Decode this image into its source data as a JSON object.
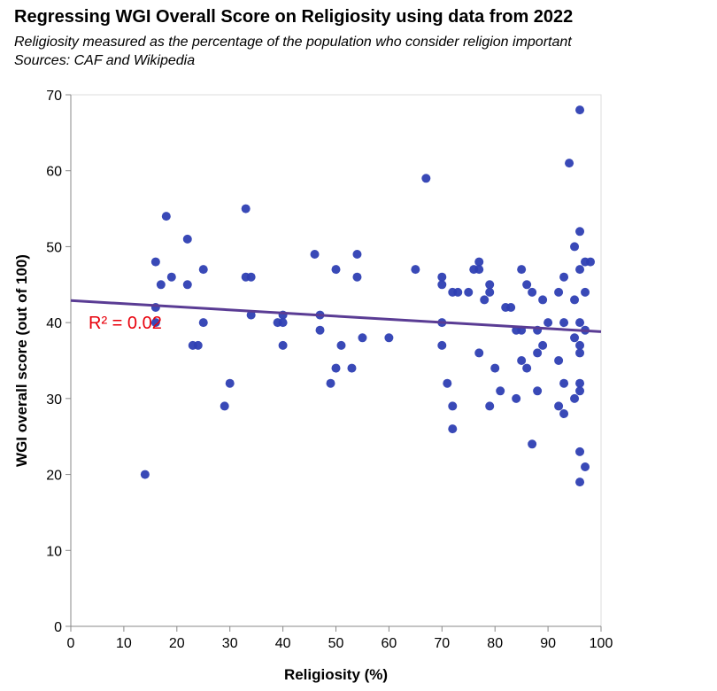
{
  "chart_data": {
    "type": "scatter",
    "title": "Regressing WGI Overall Score on Religiosity using data from 2022",
    "subtitle": "Religiosity measured as the percentage of the population who consider religion important",
    "source": "Sources: CAF and Wikipedia",
    "xlabel": "Religiosity (%)",
    "ylabel": "WGI overall score (out of 100)",
    "xlim": [
      0,
      100
    ],
    "ylim": [
      0,
      70
    ],
    "xticks": [
      0,
      10,
      20,
      30,
      40,
      50,
      60,
      70,
      80,
      90,
      100
    ],
    "yticks": [
      0,
      10,
      20,
      30,
      40,
      50,
      60,
      70
    ],
    "grid": false,
    "colors": {
      "points": "#2e3fb3",
      "trendline": "#5a3c94",
      "annotation": "#e8000b"
    },
    "annotation": "R² = 0.02",
    "trendline": {
      "x": [
        0,
        100
      ],
      "y": [
        42.9,
        38.8
      ]
    },
    "points": [
      [
        14,
        20
      ],
      [
        16,
        48
      ],
      [
        16,
        42
      ],
      [
        16,
        40
      ],
      [
        17,
        45
      ],
      [
        18,
        54
      ],
      [
        19,
        46
      ],
      [
        22,
        51
      ],
      [
        22,
        45
      ],
      [
        23,
        37
      ],
      [
        24,
        37
      ],
      [
        25,
        47
      ],
      [
        25,
        40
      ],
      [
        29,
        29
      ],
      [
        30,
        32
      ],
      [
        33,
        55
      ],
      [
        33,
        46
      ],
      [
        34,
        46
      ],
      [
        34,
        41
      ],
      [
        39,
        40
      ],
      [
        40,
        41
      ],
      [
        40,
        40
      ],
      [
        40,
        37
      ],
      [
        46,
        49
      ],
      [
        47,
        41
      ],
      [
        47,
        39
      ],
      [
        49,
        32
      ],
      [
        50,
        47
      ],
      [
        50,
        34
      ],
      [
        51,
        37
      ],
      [
        53,
        34
      ],
      [
        54,
        49
      ],
      [
        54,
        46
      ],
      [
        55,
        38
      ],
      [
        60,
        38
      ],
      [
        65,
        47
      ],
      [
        67,
        59
      ],
      [
        70,
        46
      ],
      [
        70,
        45
      ],
      [
        70,
        40
      ],
      [
        70,
        37
      ],
      [
        71,
        32
      ],
      [
        72,
        44
      ],
      [
        72,
        29
      ],
      [
        72,
        26
      ],
      [
        73,
        44
      ],
      [
        75,
        44
      ],
      [
        76,
        47
      ],
      [
        77,
        48
      ],
      [
        77,
        47
      ],
      [
        77,
        36
      ],
      [
        78,
        43
      ],
      [
        79,
        45
      ],
      [
        79,
        44
      ],
      [
        79,
        29
      ],
      [
        80,
        34
      ],
      [
        81,
        31
      ],
      [
        82,
        42
      ],
      [
        83,
        42
      ],
      [
        84,
        39
      ],
      [
        84,
        30
      ],
      [
        85,
        47
      ],
      [
        85,
        39
      ],
      [
        85,
        35
      ],
      [
        86,
        45
      ],
      [
        86,
        34
      ],
      [
        87,
        44
      ],
      [
        87,
        24
      ],
      [
        88,
        39
      ],
      [
        88,
        36
      ],
      [
        88,
        31
      ],
      [
        89,
        43
      ],
      [
        89,
        37
      ],
      [
        90,
        40
      ],
      [
        92,
        44
      ],
      [
        92,
        35
      ],
      [
        92,
        29
      ],
      [
        93,
        46
      ],
      [
        93,
        40
      ],
      [
        93,
        32
      ],
      [
        93,
        28
      ],
      [
        94,
        61
      ],
      [
        95,
        50
      ],
      [
        95,
        43
      ],
      [
        95,
        38
      ],
      [
        95,
        30
      ],
      [
        96,
        68
      ],
      [
        96,
        52
      ],
      [
        96,
        47
      ],
      [
        96,
        40
      ],
      [
        96,
        37
      ],
      [
        96,
        36
      ],
      [
        96,
        32
      ],
      [
        96,
        31
      ],
      [
        96,
        23
      ],
      [
        96,
        19
      ],
      [
        97,
        48
      ],
      [
        97,
        44
      ],
      [
        97,
        39
      ],
      [
        97,
        21
      ],
      [
        98,
        48
      ]
    ]
  }
}
